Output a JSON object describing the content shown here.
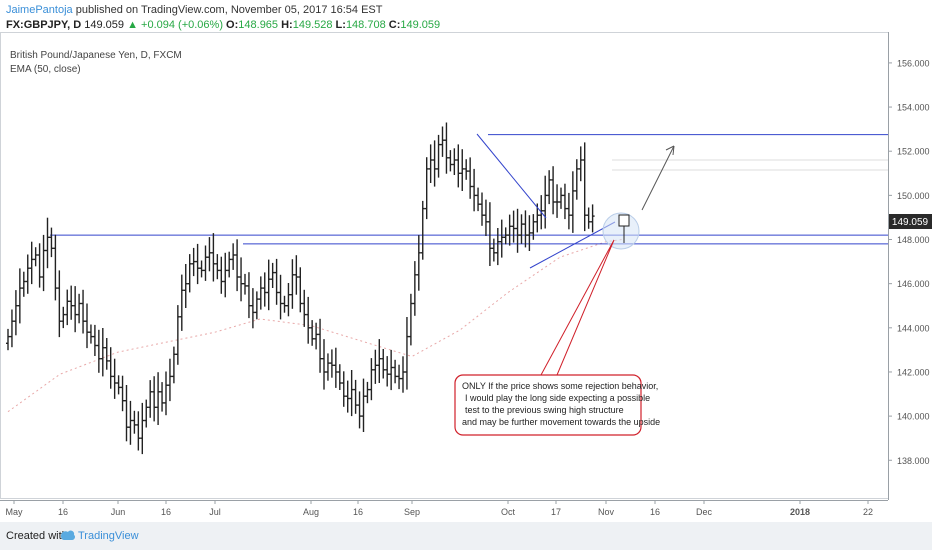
{
  "header": {
    "author": "JaimePantoja",
    "published": "published on TradingView.com, November 05, 2017 16:54 EST",
    "symbol": "FX:GBPJPY, D",
    "price": "149.059",
    "change": "+0.094 (+0.06%)",
    "o_label": "O:",
    "o_value": "148.965",
    "h_label": "H:",
    "h_value": "149.528",
    "l_label": "L:",
    "l_value": "148.708",
    "c_label": "C:",
    "c_value": "149.059"
  },
  "legend": {
    "title": "British Pound/Japanese Yen, D, FXCM",
    "indicator": "EMA (50, close)"
  },
  "current_price_label": "149.059",
  "annotation": {
    "lines": [
      "ONLY If the price shows some rejection behavior,",
      "I would play the long side expecting a possible",
      "test to the previous swing high structure",
      "and may be further movement towards the upside"
    ]
  },
  "footer": {
    "created": "Created with",
    "brand": "TradingView"
  },
  "colors": {
    "bar": "#222222",
    "level_line": "#3344cc",
    "trend_line": "#3344cc",
    "ema": "#e8a8a8",
    "annotation_border": "#d0202a",
    "arrow": "#555555",
    "price_tag": "#2a2a2a"
  },
  "chart_data": {
    "type": "ohlc",
    "ylim": [
      136.2,
      157.4
    ],
    "y_ticks": [
      138,
      140,
      142,
      144,
      146,
      148,
      150,
      152,
      154,
      156
    ],
    "y_tick_labels": [
      "138.000",
      "140.000",
      "142.000",
      "144.000",
      "146.000",
      "148.000",
      "150.000",
      "152.000",
      "154.000",
      "156.000"
    ],
    "x_tick_labels": [
      "May",
      "16",
      "Jun",
      "16",
      "Jul",
      "Aug",
      "16",
      "Sep",
      "Oct",
      "17",
      "Nov",
      "16",
      "Dec",
      "2018",
      "22"
    ],
    "close_series": [
      143.6,
      144.3,
      145.0,
      145.8,
      146.1,
      146.7,
      147.1,
      147.3,
      146.3,
      147.5,
      148.1,
      147.6,
      145.8,
      144.3,
      144.6,
      145.2,
      145.0,
      144.6,
      145.1,
      144.3,
      143.8,
      143.6,
      143.2,
      142.6,
      143.1,
      142.5,
      141.8,
      141.5,
      141.3,
      140.7,
      139.5,
      139.8,
      139.6,
      139.0,
      139.8,
      140.4,
      141.1,
      140.4,
      141.1,
      140.6,
      141.4,
      141.8,
      142.8,
      144.5,
      145.7,
      146.0,
      146.9,
      147.0,
      146.7,
      146.6,
      147.2,
      147.4,
      146.9,
      146.6,
      146.1,
      146.6,
      147.1,
      147.3,
      146.3,
      146.0,
      145.9,
      145.0,
      144.7,
      145.3,
      145.8,
      145.6,
      146.2,
      146.5,
      145.6,
      145.1,
      145.0,
      145.5,
      146.4,
      146.3,
      145.1,
      144.6,
      144.0,
      143.5,
      143.7,
      142.6,
      142.0,
      142.4,
      142.3,
      142.0,
      141.5,
      140.9,
      140.8,
      141.2,
      140.5,
      140.0,
      140.9,
      141.2,
      142.1,
      142.3,
      142.6,
      142.1,
      141.9,
      142.2,
      141.8,
      141.7,
      142.0,
      143.6,
      145.1,
      146.4,
      147.4,
      149.4,
      151.2,
      151.6,
      151.2,
      152.3,
      152.5,
      151.7,
      151.4,
      151.6,
      151.0,
      151.2,
      151.1,
      150.4,
      150.0,
      149.6,
      149.1,
      148.8,
      147.6,
      147.4,
      147.9,
      148.1,
      148.2,
      148.6,
      148.5,
      148.2,
      148.7,
      148.2,
      148.3,
      148.8,
      149.1,
      149.3,
      150.0,
      150.7,
      149.7,
      149.7,
      150.0,
      149.4,
      149.1,
      150.2,
      151.2,
      151.6,
      149.1,
      148.8,
      149.06
    ],
    "ema_50_approx": [
      {
        "x": "May",
        "y": 140.2
      },
      {
        "x": "Jun",
        "y": 142.9
      },
      {
        "x": "Jul",
        "y": 143.8
      },
      {
        "x": "Aug",
        "y": 144.1
      },
      {
        "x": "Sep",
        "y": 142.7
      },
      {
        "x": "Oct",
        "y": 145.6
      },
      {
        "x": "Nov",
        "y": 147.9
      }
    ],
    "horizontal_levels": [
      152.75,
      148.2,
      147.8
    ],
    "last_price": 149.059
  }
}
